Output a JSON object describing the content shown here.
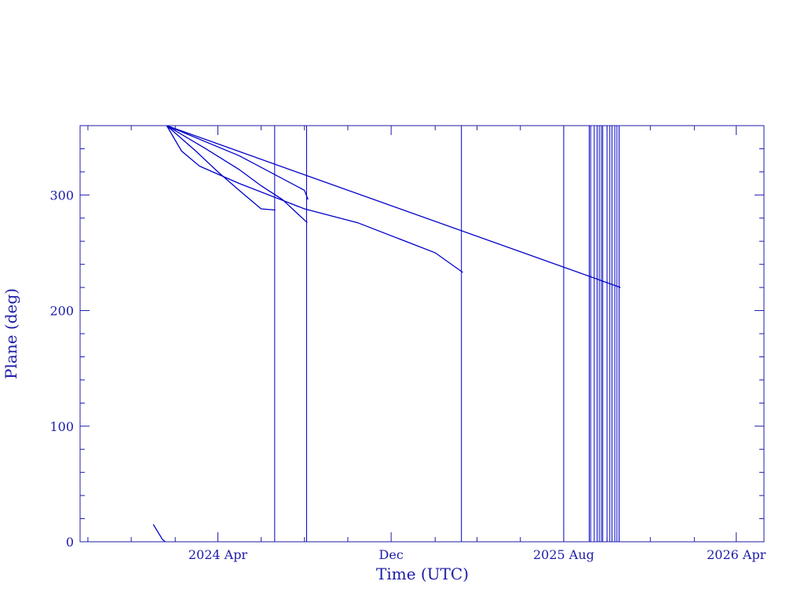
{
  "chart_data": {
    "type": "line",
    "xlabel": "Time (UTC)",
    "ylabel": "Plane (deg)",
    "xlim": [
      "2023-09-20",
      "2026-05-10"
    ],
    "ylim": [
      0,
      360
    ],
    "x_ticks": [
      {
        "date": "2024-04-01",
        "label": "2024 Apr"
      },
      {
        "date": "2024-12-01",
        "label": "Dec"
      },
      {
        "date": "2025-08-01",
        "label": "2025 Aug"
      },
      {
        "date": "2026-04-01",
        "label": "2026 Apr"
      }
    ],
    "y_ticks": [
      0,
      100,
      200,
      300
    ],
    "grid": false,
    "colors": {
      "axis": "#1c1ca8",
      "line": "#0000c8"
    },
    "series": [
      {
        "values": [
          [
            "2024-01-01",
            15
          ],
          [
            "2024-01-08",
            8
          ],
          [
            "2024-01-14",
            2
          ],
          [
            "2024-01-18",
            0
          ]
        ]
      },
      {
        "values": [
          [
            "2024-01-20",
            360
          ],
          [
            "2024-02-10",
            338
          ],
          [
            "2024-03-06",
            325
          ],
          [
            "2024-05-01",
            310
          ],
          [
            "2024-08-01",
            288
          ],
          [
            "2024-10-15",
            276
          ],
          [
            "2025-02-01",
            250
          ],
          [
            "2025-03-12",
            233
          ]
        ]
      },
      {
        "values": [
          [
            "2024-01-20",
            360
          ],
          [
            "2024-03-01",
            338
          ],
          [
            "2024-04-01",
            320
          ],
          [
            "2024-05-01",
            304
          ],
          [
            "2024-06-01",
            288
          ],
          [
            "2024-06-21",
            287
          ]
        ]
      },
      {
        "values": [
          [
            "2024-01-20",
            360
          ],
          [
            "2024-03-15",
            340
          ],
          [
            "2024-05-01",
            322
          ],
          [
            "2024-06-01",
            308
          ],
          [
            "2024-07-01",
            296
          ],
          [
            "2024-08-05",
            276
          ]
        ]
      },
      {
        "values": [
          [
            "2024-01-20",
            360
          ],
          [
            "2024-05-01",
            334
          ],
          [
            "2024-08-01",
            304
          ],
          [
            "2024-08-06",
            296
          ]
        ]
      },
      {
        "values": [
          [
            "2024-01-20",
            360
          ],
          [
            "2025-10-20",
            220
          ]
        ]
      }
    ],
    "vertical_lines": [
      {
        "date": "2024-06-20"
      },
      {
        "date": "2024-08-04"
      },
      {
        "date": "2025-03-10"
      },
      {
        "date": "2025-08-01"
      },
      {
        "date": "2025-09-06"
      },
      {
        "date": "2025-09-08"
      },
      {
        "date": "2025-09-13"
      },
      {
        "date": "2025-09-17"
      },
      {
        "date": "2025-09-20"
      },
      {
        "date": "2025-09-23"
      },
      {
        "date": "2025-09-25"
      },
      {
        "date": "2025-10-01"
      },
      {
        "date": "2025-10-05"
      },
      {
        "date": "2025-10-08"
      },
      {
        "date": "2025-10-12"
      },
      {
        "date": "2025-10-15"
      },
      {
        "date": "2025-10-18"
      }
    ]
  }
}
